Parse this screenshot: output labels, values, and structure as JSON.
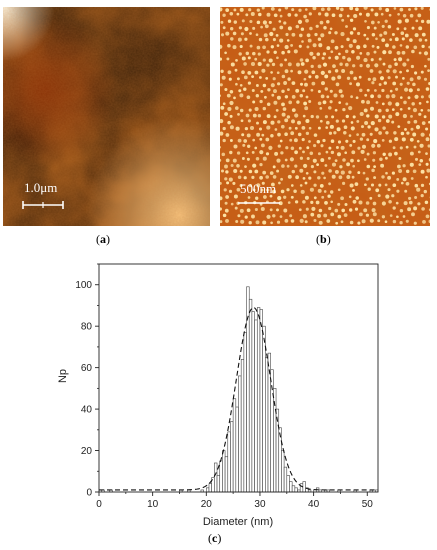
{
  "panels": {
    "a": {
      "scale_bar_label": "1.0μm",
      "caption_open": "(",
      "caption_letter": "a",
      "caption_close": ")"
    },
    "b": {
      "scale_bar_label": "500nm",
      "caption_open": "(",
      "caption_letter": "b",
      "caption_close": ")"
    },
    "c": {
      "caption_open": "(",
      "caption_letter": "c",
      "caption_close": ")"
    }
  },
  "colors": {
    "afm_dark": "#9c3d0c",
    "afm_mid": "#c9621b",
    "afm_light": "#f2b064",
    "afm_highlight": "#fff0d0",
    "dot_color": "#fde3a6",
    "bar_fill": "#ffffff",
    "bar_stroke": "#444444"
  },
  "chart_data": {
    "type": "bar",
    "xlabel": "Diameter (nm)",
    "ylabel": "Np",
    "xlim": [
      0,
      52
    ],
    "ylim": [
      0,
      110
    ],
    "x_ticks": [
      0,
      10,
      20,
      30,
      40,
      50
    ],
    "y_ticks": [
      0,
      20,
      40,
      60,
      80,
      100
    ],
    "bin_width": 0.5,
    "bins_start": [
      0.0,
      0.5,
      1.0,
      1.5,
      2.0,
      2.5,
      3.0,
      3.5,
      4.0,
      4.5,
      5.0,
      5.5,
      6.0,
      6.5,
      7.0,
      7.5,
      8.0,
      8.5,
      9.0,
      9.5,
      10.0,
      10.5,
      11.0,
      11.5,
      12.0,
      12.5,
      13.0,
      13.5,
      14.0,
      14.5,
      15.0,
      15.5,
      16.0,
      16.5,
      17.0,
      17.5,
      18.0,
      18.5,
      19.0,
      19.5,
      20.0,
      20.5,
      21.0,
      21.5,
      22.0,
      22.5,
      23.0,
      23.5,
      24.0,
      24.5,
      25.0,
      25.5,
      26.0,
      26.5,
      27.0,
      27.5,
      28.0,
      28.5,
      29.0,
      29.5,
      30.0,
      30.5,
      31.0,
      31.5,
      32.0,
      32.5,
      33.0,
      33.5,
      34.0,
      34.5,
      35.0,
      35.5,
      36.0,
      36.5,
      37.0,
      37.5,
      38.0,
      38.5,
      39.0,
      39.5,
      40.0,
      40.5,
      41.0,
      41.5,
      42.0,
      42.5,
      43.0,
      43.5,
      44.0,
      44.5,
      45.0,
      45.5,
      46.0,
      46.5,
      47.0,
      47.5,
      48.0,
      48.5,
      49.0,
      49.5,
      50.0,
      50.5,
      51.0,
      51.5
    ],
    "counts": [
      0,
      1,
      0,
      0,
      1,
      0,
      0,
      0,
      0,
      0,
      0,
      0,
      0,
      0,
      0,
      0,
      0,
      0,
      0,
      0,
      0,
      0,
      0,
      0,
      0,
      0,
      0,
      0,
      0,
      0,
      1,
      0,
      0,
      1,
      0,
      0,
      0,
      0,
      1,
      0,
      2,
      4,
      7,
      14,
      8,
      15,
      20,
      17,
      29,
      34,
      45,
      41,
      56,
      64,
      77,
      99,
      93,
      87,
      83,
      89,
      88,
      80,
      65,
      67,
      59,
      50,
      40,
      31,
      20,
      12,
      8,
      5,
      3,
      2,
      1,
      4,
      5,
      2,
      1,
      0,
      1,
      2,
      1,
      0,
      1,
      1,
      0,
      0,
      0,
      1,
      0,
      0,
      0,
      0,
      0,
      1,
      0,
      0,
      0,
      0,
      0,
      1,
      0,
      1
    ],
    "fit": {
      "type": "gaussian",
      "center": 28.8,
      "amplitude": 88,
      "sigma": 3.2,
      "baseline": 1,
      "style": "dashed"
    }
  }
}
